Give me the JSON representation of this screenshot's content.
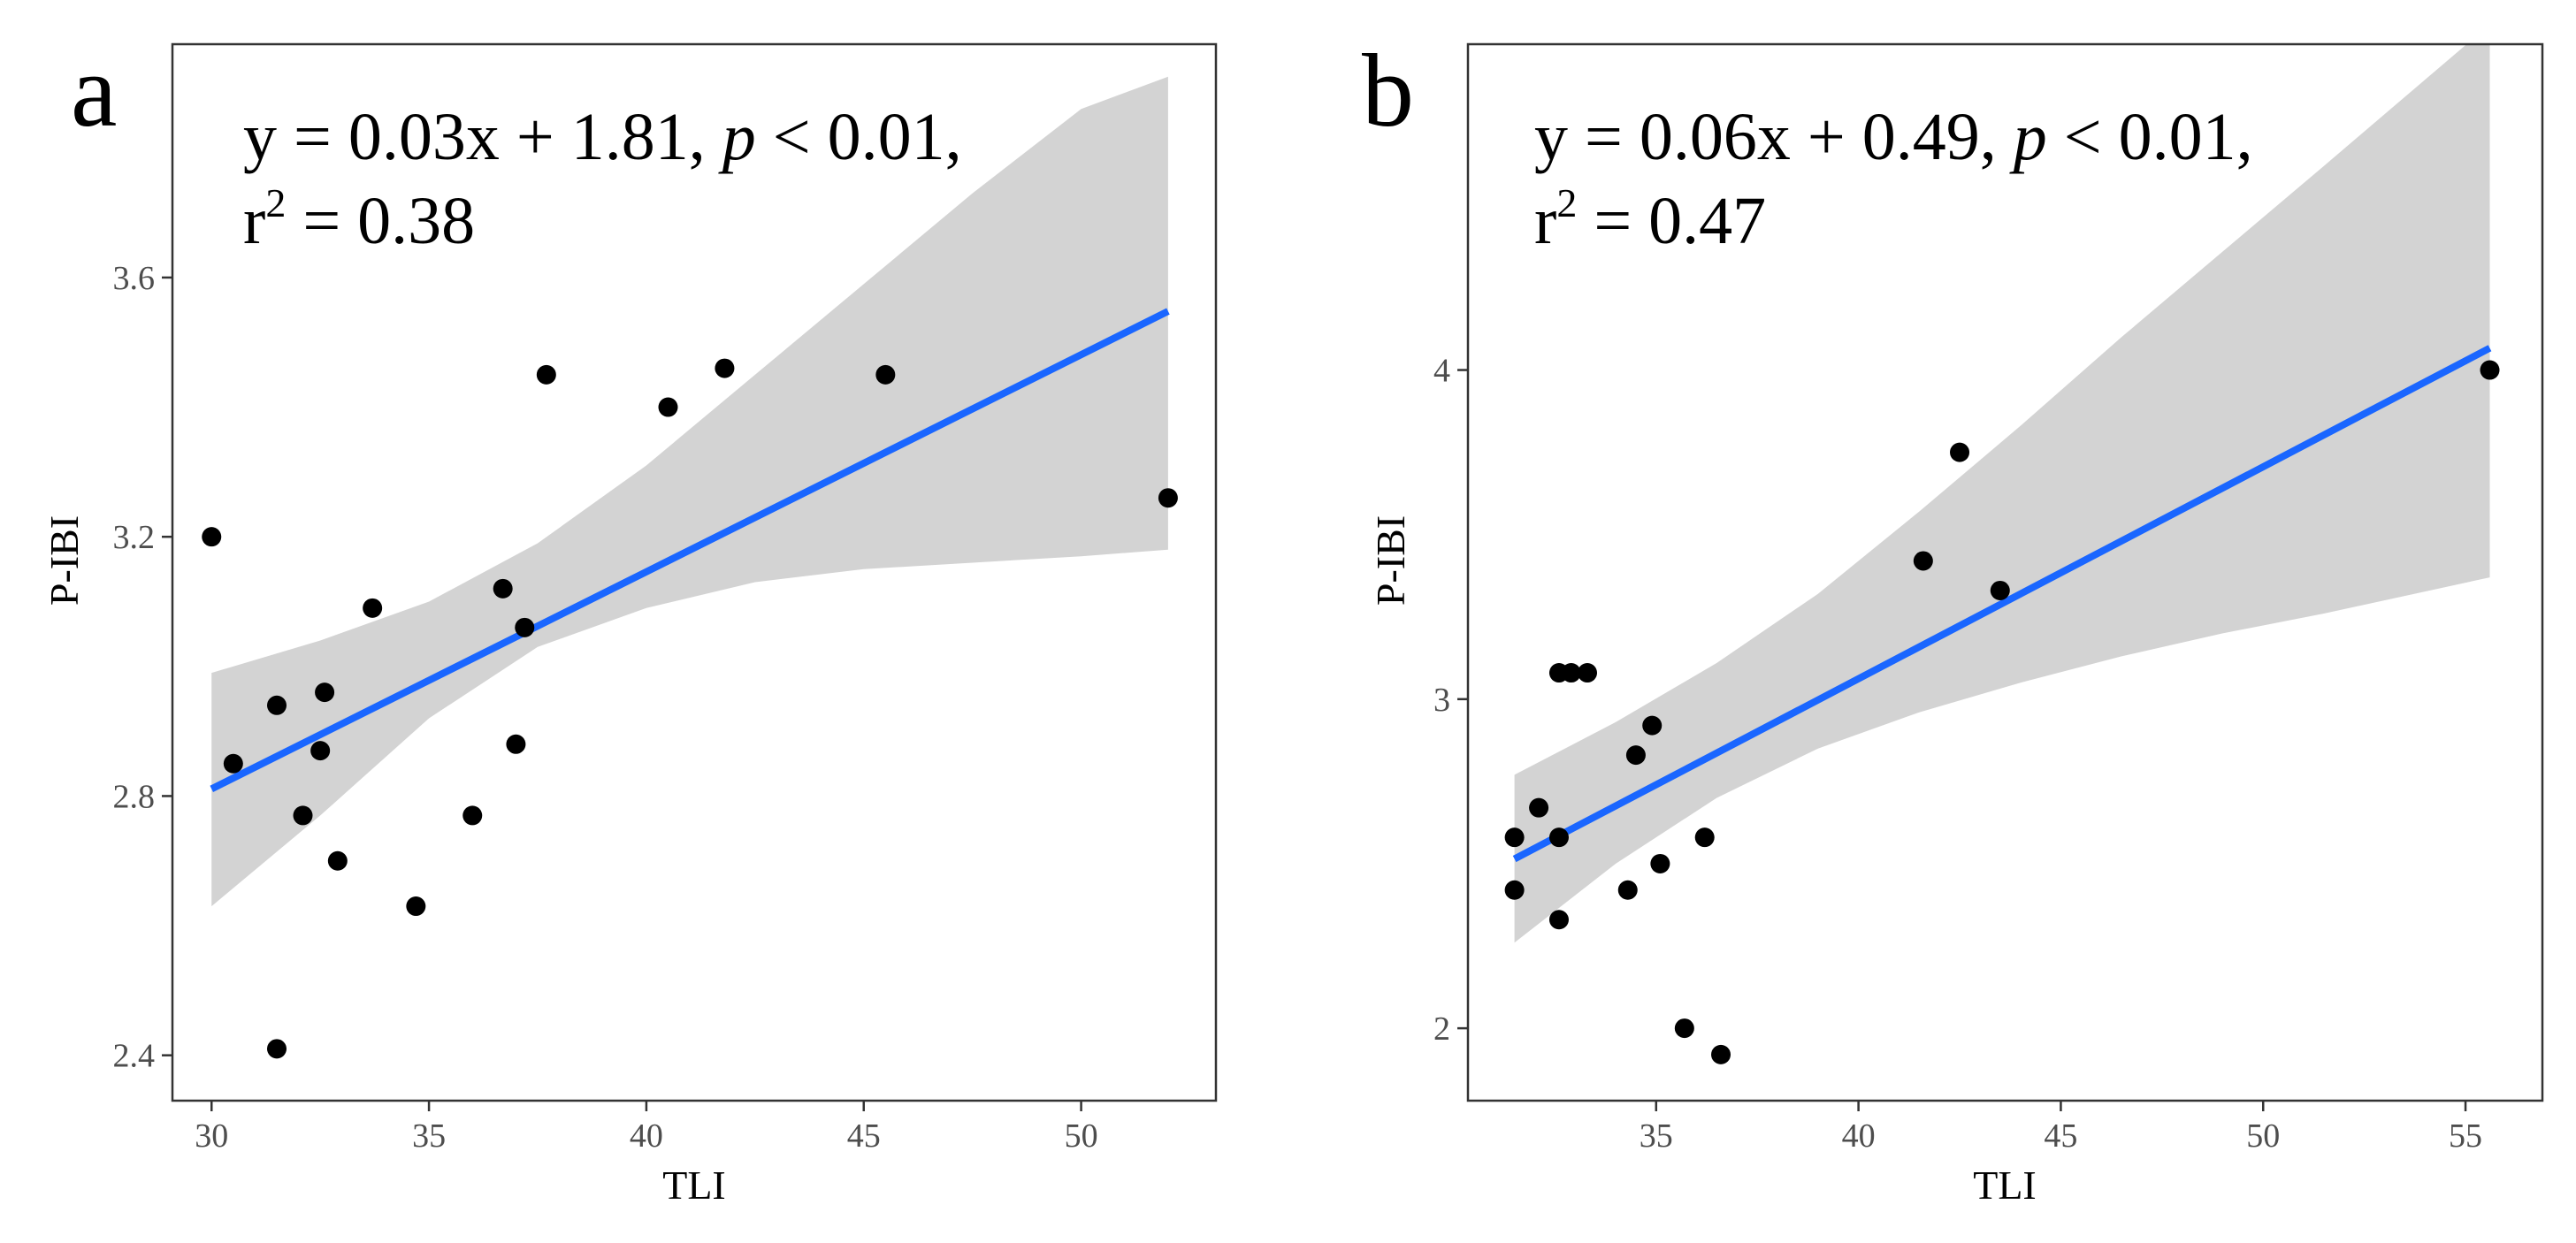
{
  "chart_data": [
    {
      "type": "scatter",
      "panel": "a",
      "annotation": {
        "equation": "y = 0.03x + 1.81, ",
        "p_symbol": "p",
        "p_value": " < 0.01,",
        "r2_base": "r",
        "r2_exp": "2",
        "r2_value": " = 0.38"
      },
      "xlabel": "TLI",
      "ylabel": "P-IBI",
      "xlim": [
        29.1,
        53.1
      ],
      "ylim": [
        2.33,
        3.96
      ],
      "xticks": [
        30,
        35,
        40,
        45,
        50
      ],
      "yticks": [
        2.4,
        2.8,
        3.2,
        3.6
      ],
      "xtick_labels": [
        "30",
        "35",
        "40",
        "45",
        "50"
      ],
      "ytick_labels": [
        "2.4",
        "2.8",
        "3.2",
        "3.6"
      ],
      "fit": {
        "slope": 0.0335,
        "intercept": 1.806,
        "x_range": [
          30.0,
          52.0
        ]
      },
      "ci_band": [
        {
          "x": 30.0,
          "lo": 2.63,
          "hi": 2.99
        },
        {
          "x": 32.5,
          "lo": 2.77,
          "hi": 3.04
        },
        {
          "x": 35.0,
          "lo": 2.92,
          "hi": 3.1
        },
        {
          "x": 37.5,
          "lo": 3.03,
          "hi": 3.19
        },
        {
          "x": 40.0,
          "lo": 3.09,
          "hi": 3.31
        },
        {
          "x": 42.5,
          "lo": 3.13,
          "hi": 3.45
        },
        {
          "x": 45.0,
          "lo": 3.15,
          "hi": 3.59
        },
        {
          "x": 47.5,
          "lo": 3.16,
          "hi": 3.73
        },
        {
          "x": 50.0,
          "lo": 3.17,
          "hi": 3.86
        },
        {
          "x": 52.0,
          "lo": 3.18,
          "hi": 3.91
        }
      ],
      "points": [
        {
          "x": 30.0,
          "y": 3.2
        },
        {
          "x": 30.5,
          "y": 2.85
        },
        {
          "x": 31.5,
          "y": 2.94
        },
        {
          "x": 31.5,
          "y": 2.41
        },
        {
          "x": 32.1,
          "y": 2.77
        },
        {
          "x": 32.6,
          "y": 2.96
        },
        {
          "x": 32.5,
          "y": 2.87
        },
        {
          "x": 32.9,
          "y": 2.7
        },
        {
          "x": 33.7,
          "y": 3.09
        },
        {
          "x": 34.7,
          "y": 2.63
        },
        {
          "x": 36.0,
          "y": 2.77
        },
        {
          "x": 36.7,
          "y": 3.12
        },
        {
          "x": 37.0,
          "y": 2.88
        },
        {
          "x": 37.2,
          "y": 3.06
        },
        {
          "x": 37.7,
          "y": 3.45
        },
        {
          "x": 40.5,
          "y": 3.4
        },
        {
          "x": 41.8,
          "y": 3.46
        },
        {
          "x": 45.5,
          "y": 3.45
        },
        {
          "x": 52.0,
          "y": 3.26
        }
      ]
    },
    {
      "type": "scatter",
      "panel": "b",
      "annotation": {
        "equation": "y = 0.06x + 0.49, ",
        "p_symbol": "p",
        "p_value": " < 0.01,",
        "r2_base": "r",
        "r2_exp": "2",
        "r2_value": " = 0.47"
      },
      "xlabel": "TLI",
      "ylabel": "P-IBI",
      "xlim": [
        30.35,
        56.9
      ],
      "ylim": [
        1.78,
        4.99
      ],
      "xticks": [
        35,
        40,
        45,
        50,
        55
      ],
      "yticks": [
        2,
        3,
        4
      ],
      "xtick_labels": [
        "35",
        "40",
        "45",
        "50",
        "55"
      ],
      "ytick_labels": [
        "2",
        "3",
        "4"
      ],
      "fit": {
        "slope": 0.0644,
        "intercept": 0.486,
        "x_range": [
          31.5,
          55.6
        ]
      },
      "ci_band": [
        {
          "x": 31.5,
          "lo": 2.26,
          "hi": 2.77
        },
        {
          "x": 34.0,
          "lo": 2.5,
          "hi": 2.93
        },
        {
          "x": 36.5,
          "lo": 2.7,
          "hi": 3.11
        },
        {
          "x": 39.0,
          "lo": 2.85,
          "hi": 3.32
        },
        {
          "x": 41.5,
          "lo": 2.96,
          "hi": 3.57
        },
        {
          "x": 44.0,
          "lo": 3.05,
          "hi": 3.83
        },
        {
          "x": 46.5,
          "lo": 3.13,
          "hi": 4.1
        },
        {
          "x": 49.0,
          "lo": 3.2,
          "hi": 4.36
        },
        {
          "x": 51.5,
          "lo": 3.26,
          "hi": 4.62
        },
        {
          "x": 55.6,
          "lo": 3.37,
          "hi": 5.05
        }
      ],
      "points": [
        {
          "x": 31.5,
          "y": 2.58
        },
        {
          "x": 31.5,
          "y": 2.42
        },
        {
          "x": 32.1,
          "y": 2.67
        },
        {
          "x": 32.6,
          "y": 3.08
        },
        {
          "x": 32.9,
          "y": 3.08
        },
        {
          "x": 33.3,
          "y": 3.08
        },
        {
          "x": 32.6,
          "y": 2.58
        },
        {
          "x": 32.6,
          "y": 2.33
        },
        {
          "x": 34.3,
          "y": 2.42
        },
        {
          "x": 34.5,
          "y": 2.83
        },
        {
          "x": 34.9,
          "y": 2.92
        },
        {
          "x": 35.1,
          "y": 2.5
        },
        {
          "x": 35.7,
          "y": 2.0
        },
        {
          "x": 36.2,
          "y": 2.58
        },
        {
          "x": 36.6,
          "y": 1.92
        },
        {
          "x": 41.6,
          "y": 3.42
        },
        {
          "x": 42.5,
          "y": 3.75
        },
        {
          "x": 43.5,
          "y": 3.33
        },
        {
          "x": 55.6,
          "y": 4.0
        }
      ]
    }
  ]
}
